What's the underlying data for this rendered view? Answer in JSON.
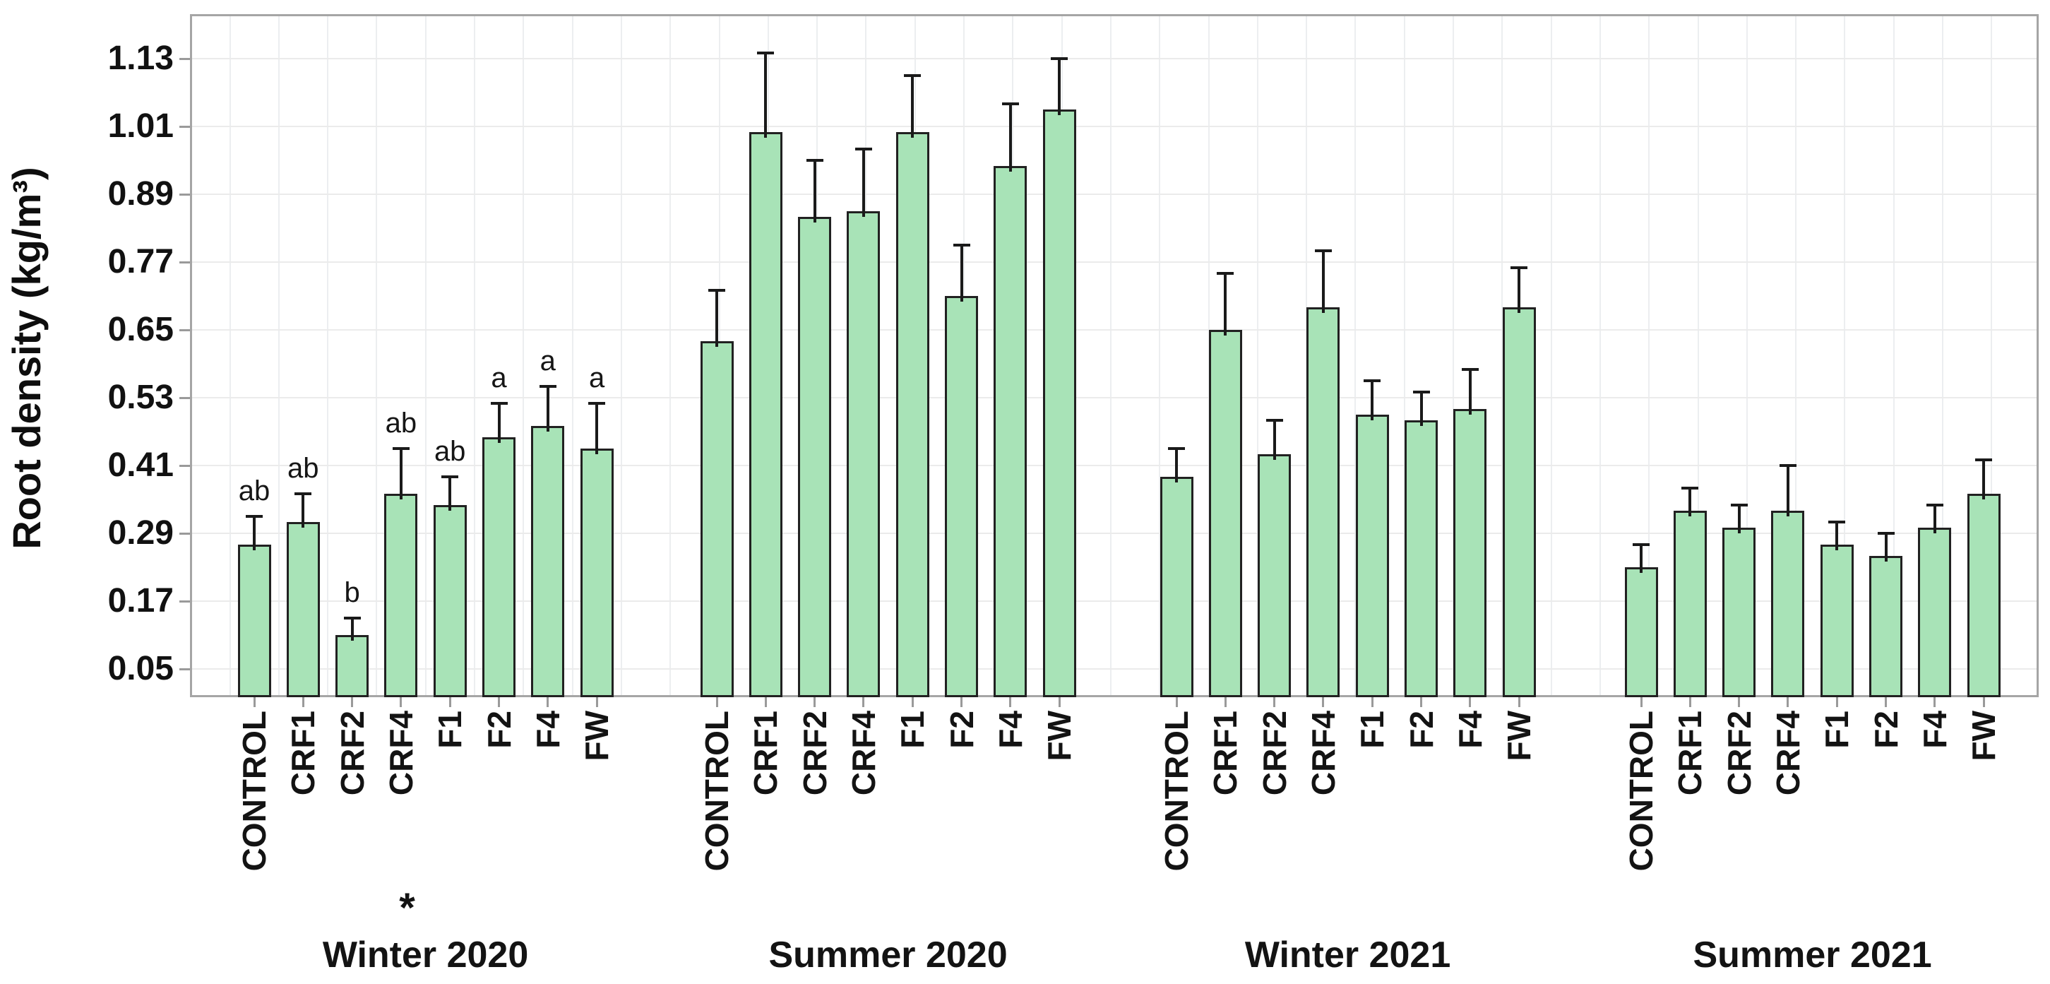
{
  "chart_data": {
    "type": "bar",
    "title": "",
    "ylabel": "Root density (kg/m³)",
    "xlabel": "",
    "ylim": [
      0,
      1.21
    ],
    "yticks": [
      1.13,
      1.01,
      0.89,
      0.77,
      0.65,
      0.53,
      0.41,
      0.29,
      0.17,
      0.05
    ],
    "grid": true,
    "legend_position": "none",
    "bar_color": "#a8e3b7",
    "bar_border_color": "#212121",
    "error_bar_color": "#1a1a1a",
    "categories": [
      "CONTROL",
      "CRF1",
      "CRF2",
      "CRF4",
      "F1",
      "F2",
      "F4",
      "FW"
    ],
    "groups": [
      {
        "label": "Winter 2020",
        "annotation": "*",
        "values": [
          0.27,
          0.31,
          0.11,
          0.36,
          0.34,
          0.46,
          0.48,
          0.44
        ],
        "errors": [
          0.05,
          0.05,
          0.03,
          0.08,
          0.05,
          0.06,
          0.07,
          0.08
        ],
        "letters": [
          "ab",
          "ab",
          "b",
          "ab",
          "ab",
          "a",
          "a",
          "a"
        ]
      },
      {
        "label": "Summer 2020",
        "annotation": "",
        "values": [
          0.63,
          1.0,
          0.85,
          0.86,
          1.0,
          0.71,
          0.94,
          1.04
        ],
        "errors": [
          0.09,
          0.14,
          0.1,
          0.11,
          0.1,
          0.09,
          0.11,
          0.09
        ],
        "letters": [
          "",
          "",
          "",
          "",
          "",
          "",
          "",
          ""
        ]
      },
      {
        "label": "Winter 2021",
        "annotation": "",
        "values": [
          0.39,
          0.65,
          0.43,
          0.69,
          0.5,
          0.49,
          0.51,
          0.69
        ],
        "errors": [
          0.05,
          0.1,
          0.06,
          0.1,
          0.06,
          0.05,
          0.07,
          0.07
        ],
        "letters": [
          "",
          "",
          "",
          "",
          "",
          "",
          "",
          ""
        ]
      },
      {
        "label": "Summer 2021",
        "annotation": "",
        "values": [
          0.23,
          0.33,
          0.3,
          0.33,
          0.27,
          0.25,
          0.3,
          0.36
        ],
        "errors": [
          0.04,
          0.04,
          0.04,
          0.08,
          0.04,
          0.04,
          0.04,
          0.06
        ],
        "letters": [
          "",
          "",
          "",
          "",
          "",
          "",
          "",
          ""
        ]
      }
    ]
  }
}
